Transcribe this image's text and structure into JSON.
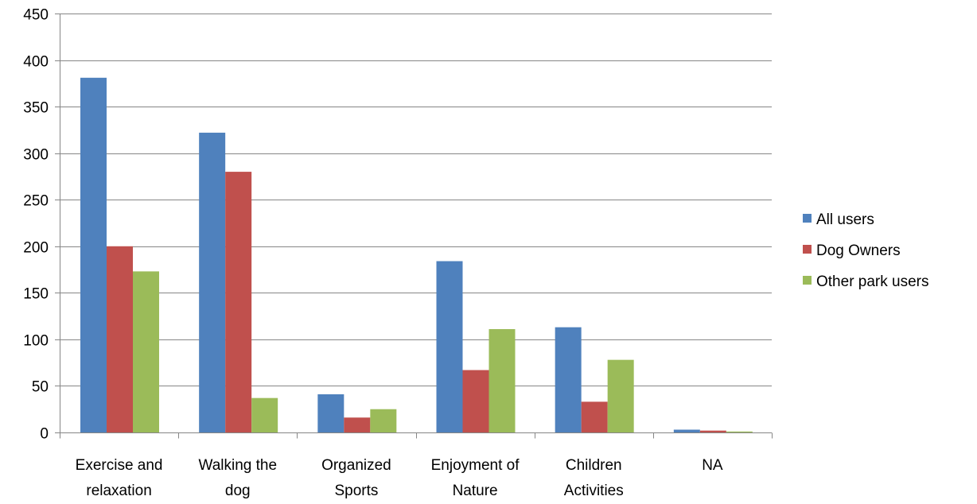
{
  "chart_data": {
    "type": "bar",
    "title": "",
    "xlabel": "",
    "ylabel": "",
    "ylim": [
      0,
      450
    ],
    "yticks": [
      0,
      50,
      100,
      150,
      200,
      250,
      300,
      350,
      400,
      450
    ],
    "grid": true,
    "legend_position": "right",
    "categories": [
      [
        "Exercise and",
        "relaxation"
      ],
      [
        "Walking the",
        "dog"
      ],
      [
        "Organized",
        "Sports"
      ],
      [
        "Enjoyment of",
        "Nature"
      ],
      [
        "Children",
        "Activities"
      ],
      [
        "NA"
      ]
    ],
    "series": [
      {
        "name": "All users",
        "color": "#4F81BD",
        "values": [
          381,
          322,
          41,
          184,
          113,
          3
        ]
      },
      {
        "name": "Dog Owners",
        "color": "#C0504D",
        "values": [
          200,
          280,
          16,
          67,
          33,
          2
        ]
      },
      {
        "name": "Other park users",
        "color": "#9BBB59",
        "values": [
          173,
          37,
          25,
          111,
          78,
          1
        ]
      }
    ]
  }
}
